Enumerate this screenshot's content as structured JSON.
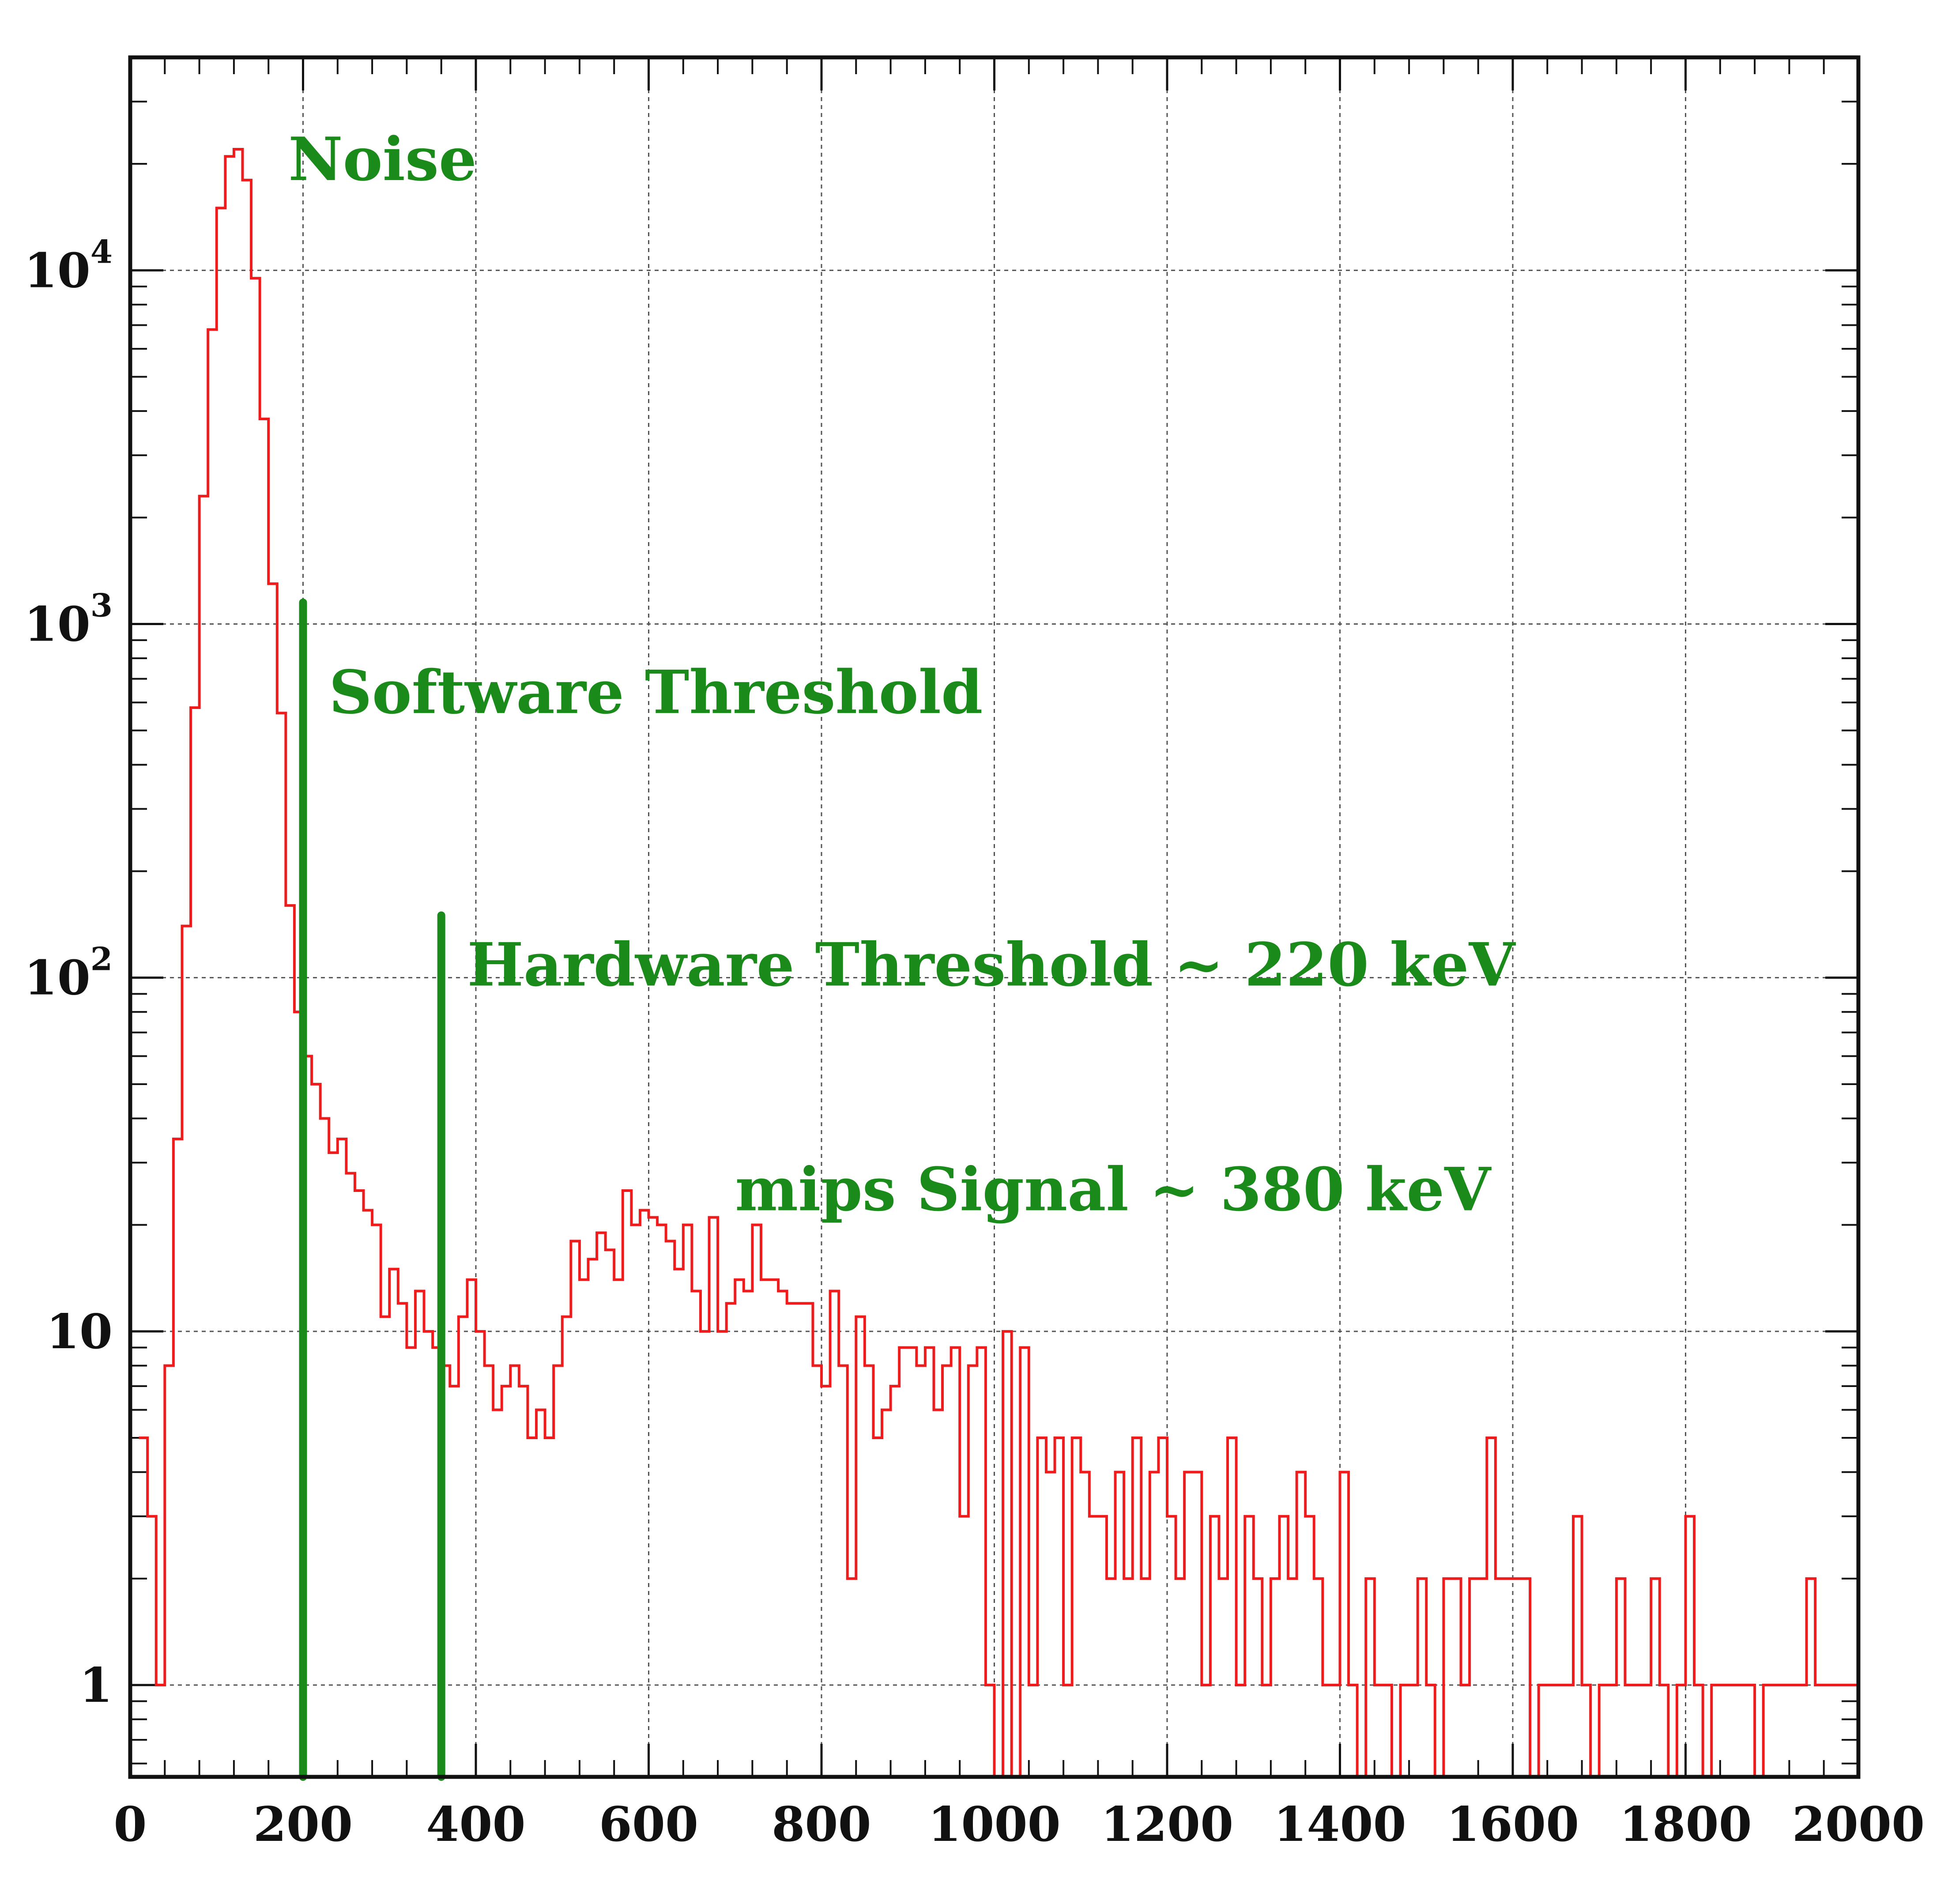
{
  "chart_data": {
    "type": "histogram",
    "title": "",
    "xlabel": "",
    "ylabel": "",
    "xlim": [
      0,
      2000
    ],
    "ylim": [
      0.55,
      40000
    ],
    "yscale": "log",
    "grid": true,
    "x_ticks": [
      0,
      200,
      400,
      600,
      800,
      1000,
      1200,
      1400,
      1600,
      1800,
      2000
    ],
    "y_ticks": [
      {
        "value": 1,
        "base": "1",
        "exp": ""
      },
      {
        "value": 10,
        "base": "10",
        "exp": ""
      },
      {
        "value": 100,
        "base": "10",
        "exp": "2"
      },
      {
        "value": 1000,
        "base": "10",
        "exp": "3"
      },
      {
        "value": 10000,
        "base": "10",
        "exp": "4"
      }
    ],
    "bin_width": 10,
    "series": [
      {
        "color": "#ee1c1c",
        "x": [
          10,
          20,
          30,
          40,
          50,
          60,
          70,
          80,
          90,
          100,
          110,
          120,
          130,
          140,
          150,
          160,
          170,
          180,
          190,
          200,
          210,
          220,
          230,
          240,
          250,
          260,
          270,
          280,
          290,
          300,
          310,
          320,
          330,
          340,
          350,
          360,
          370,
          380,
          390,
          400,
          410,
          420,
          430,
          440,
          450,
          460,
          470,
          480,
          490,
          500,
          510,
          520,
          530,
          540,
          550,
          560,
          570,
          580,
          590,
          600,
          610,
          620,
          630,
          640,
          650,
          660,
          670,
          680,
          690,
          700,
          710,
          720,
          730,
          740,
          750,
          760,
          770,
          780,
          790,
          800,
          810,
          820,
          830,
          840,
          850,
          860,
          870,
          880,
          890,
          900,
          910,
          920,
          930,
          940,
          950,
          960,
          970,
          980,
          990,
          1000,
          1010,
          1020,
          1030,
          1040,
          1050,
          1060,
          1070,
          1080,
          1090,
          1100,
          1110,
          1120,
          1130,
          1140,
          1150,
          1160,
          1170,
          1180,
          1190,
          1200,
          1210,
          1220,
          1230,
          1240,
          1250,
          1260,
          1270,
          1280,
          1290,
          1300,
          1310,
          1320,
          1330,
          1340,
          1350,
          1360,
          1370,
          1380,
          1390,
          1400,
          1410,
          1420,
          1430,
          1440,
          1450,
          1460,
          1470,
          1480,
          1490,
          1500,
          1510,
          1520,
          1530,
          1540,
          1550,
          1560,
          1570,
          1580,
          1590,
          1600,
          1610,
          1620,
          1630,
          1640,
          1650,
          1660,
          1670,
          1680,
          1690,
          1700,
          1710,
          1720,
          1730,
          1740,
          1750,
          1760,
          1770,
          1780,
          1790,
          1800,
          1810,
          1820,
          1830,
          1840,
          1850,
          1860,
          1870,
          1880,
          1890,
          1900,
          1910,
          1920,
          1930,
          1940,
          1950,
          1960,
          1970,
          1980,
          1990
        ],
        "values": [
          5,
          3,
          1,
          8,
          35,
          140,
          580,
          2300,
          6800,
          15000,
          21000,
          22000,
          18000,
          9500,
          3800,
          1300,
          560,
          160,
          80,
          60,
          50,
          40,
          32,
          35,
          28,
          25,
          22,
          20,
          11,
          15,
          12,
          9,
          13,
          10,
          9,
          8,
          7,
          11,
          14,
          10,
          8,
          6,
          7,
          8,
          7,
          5,
          6,
          5,
          8,
          11,
          18,
          14,
          16,
          19,
          17,
          14,
          25,
          20,
          22,
          21,
          20,
          18,
          15,
          20,
          13,
          10,
          21,
          10,
          12,
          14,
          13,
          20,
          14,
          14,
          13,
          12,
          12,
          12,
          8,
          7,
          13,
          8,
          2,
          11,
          8,
          5,
          6,
          7,
          9,
          9,
          8,
          9,
          6,
          8,
          9,
          3,
          8,
          9,
          1,
          0,
          10,
          0,
          9,
          1,
          5,
          4,
          5,
          1,
          5,
          4,
          3,
          3,
          2,
          4,
          2,
          5,
          2,
          4,
          5,
          3,
          2,
          4,
          4,
          1,
          3,
          2,
          5,
          1,
          3,
          2,
          1,
          2,
          3,
          2,
          4,
          3,
          2,
          1,
          1,
          4,
          1,
          0.5,
          2,
          1,
          1,
          0.5,
          1,
          1,
          2,
          1,
          0.5,
          2,
          2,
          1,
          2,
          2,
          5,
          2,
          2,
          2,
          2,
          0.5,
          1,
          1,
          1,
          1,
          3,
          1,
          0.5,
          1,
          1,
          2,
          1,
          1,
          1,
          2,
          1,
          0.5,
          1,
          3,
          1,
          0.5,
          1,
          1,
          1,
          1,
          1,
          0.5,
          1,
          1,
          1,
          1,
          1,
          2,
          1,
          1,
          1,
          1,
          1
        ]
      }
    ],
    "threshold_lines": [
      {
        "x": 200,
        "y_top": 1150,
        "color": "#1a8a1a"
      },
      {
        "x": 360,
        "y_top": 150,
        "color": "#1a8a1a"
      }
    ],
    "annotations": [
      {
        "text": "Noise",
        "x": 183,
        "y": 18000,
        "color": "#1a8a1a"
      },
      {
        "text": "Software Threshold",
        "x": 230,
        "y": 560,
        "color": "#1a8a1a"
      },
      {
        "text": "Hardware Threshold ~ 220 keV",
        "x": 390,
        "y": 95,
        "color": "#1a8a1a"
      },
      {
        "text": "mips Signal ~ 380 keV",
        "x": 700,
        "y": 22,
        "color": "#1a8a1a"
      }
    ]
  }
}
